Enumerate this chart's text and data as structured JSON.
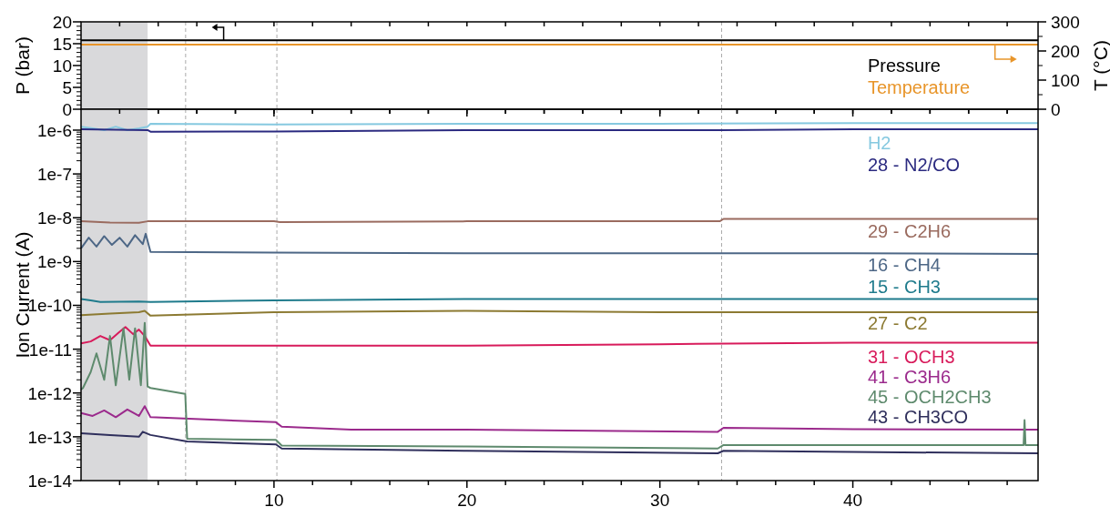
{
  "chart_data": [
    {
      "type": "line",
      "xlim": [
        0,
        49.6
      ],
      "xticks": [
        {
          "value": 2,
          "label": null
        },
        {
          "value": 4,
          "label": null
        },
        {
          "value": 6,
          "label": null
        },
        {
          "value": 8,
          "label": null
        },
        {
          "value": 10,
          "label": null
        },
        {
          "value": 12,
          "label": null
        },
        {
          "value": 14,
          "label": null
        },
        {
          "value": 16,
          "label": null
        },
        {
          "value": 18,
          "label": null
        },
        {
          "value": 20,
          "label": null
        },
        {
          "value": 22,
          "label": null
        },
        {
          "value": 24,
          "label": null
        },
        {
          "value": 26,
          "label": null
        },
        {
          "value": 28,
          "label": null
        },
        {
          "value": 30,
          "label": null
        },
        {
          "value": 32,
          "label": null
        },
        {
          "value": 34,
          "label": null
        },
        {
          "value": 36,
          "label": null
        },
        {
          "value": 38,
          "label": null
        },
        {
          "value": 40,
          "label": null
        },
        {
          "value": 42,
          "label": null
        },
        {
          "value": 44,
          "label": null
        },
        {
          "value": 46,
          "label": null
        },
        {
          "value": 48,
          "label": null
        }
      ],
      "ylim": [
        0,
        20
      ],
      "yticks": [
        0,
        5,
        10,
        15,
        20
      ],
      "ylabel": "P (bar)",
      "y2lim": [
        0,
        300
      ],
      "y2ticks": [
        0,
        100,
        200,
        300
      ],
      "y2label": "T (°C)",
      "tick_labels": "y",
      "legend": "right",
      "bands": [
        {
          "axis": "x",
          "from": 0,
          "to": 3.45,
          "color": "#d9d9db"
        }
      ],
      "ref_lines": [
        {
          "axis": "x",
          "value": 5.42,
          "color": "#aaaaaa",
          "line_style": "dashed"
        },
        {
          "axis": "x",
          "value": 10.15,
          "color": "#aaaaaa",
          "line_style": "dashed"
        },
        {
          "axis": "x",
          "value": 33.2,
          "color": "#aaaaaa",
          "line_style": "dashed"
        }
      ],
      "series": [
        {
          "name": "Pressure",
          "color": "#000000",
          "x": [
            0,
            49.6
          ],
          "values": [
            15.8,
            15.8
          ]
        },
        {
          "name": "Temperature",
          "color": "#e8952a",
          "axis": "y2",
          "x": [
            0,
            49.6
          ],
          "values": [
            222,
            222
          ]
        }
      ]
    },
    {
      "type": "line",
      "log": "y",
      "xlim": [
        0,
        49.6
      ],
      "xticks": [
        {
          "value": 2,
          "label": null
        },
        {
          "value": 4,
          "label": null
        },
        {
          "value": 6,
          "label": null
        },
        {
          "value": 8,
          "label": null
        },
        10,
        {
          "value": 12,
          "label": null
        },
        {
          "value": 14,
          "label": null
        },
        {
          "value": 16,
          "label": null
        },
        {
          "value": 18,
          "label": null
        },
        20,
        {
          "value": 22,
          "label": null
        },
        {
          "value": 24,
          "label": null
        },
        {
          "value": 26,
          "label": null
        },
        {
          "value": 28,
          "label": null
        },
        30,
        {
          "value": 32,
          "label": null
        },
        {
          "value": 34,
          "label": null
        },
        {
          "value": 36,
          "label": null
        },
        {
          "value": 38,
          "label": null
        },
        40,
        {
          "value": 42,
          "label": null
        },
        {
          "value": 44,
          "label": null
        },
        {
          "value": 46,
          "label": null
        },
        {
          "value": 48,
          "label": null
        }
      ],
      "ylim": [
        1e-14,
        3e-06
      ],
      "yticks": [
        {
          "value": 1e-14,
          "label": "1e-14"
        },
        {
          "value": 1e-13,
          "label": "1e-13"
        },
        {
          "value": 1e-12,
          "label": "1e-12"
        },
        {
          "value": 1e-11,
          "label": "1e-11"
        },
        {
          "value": 1e-10,
          "label": "1e-10"
        },
        {
          "value": 1e-09,
          "label": "1e-9"
        },
        {
          "value": 1e-08,
          "label": "1e-8"
        },
        {
          "value": 1e-07,
          "label": "1e-7"
        },
        {
          "value": 1e-06,
          "label": "1e-6"
        }
      ],
      "ylabel": "Ion Current (A)",
      "legend": "right",
      "bands": [
        {
          "axis": "x",
          "from": 0,
          "to": 3.45,
          "color": "#d9d9db"
        }
      ],
      "ref_lines": [
        {
          "axis": "x",
          "value": 5.42,
          "color": "#aaaaaa",
          "line_style": "dashed"
        },
        {
          "axis": "x",
          "value": 10.15,
          "color": "#aaaaaa",
          "line_style": "dashed"
        },
        {
          "axis": "x",
          "value": 33.2,
          "color": "#aaaaaa",
          "line_style": "dashed"
        }
      ],
      "series": [
        {
          "name": "H2",
          "color": "#86c9e0",
          "x": [
            0,
            0.6,
            1.2,
            1.8,
            2.4,
            3.0,
            3.45,
            3.6,
            10,
            20,
            30,
            40,
            49.6
          ],
          "values": [
            1.2e-06,
            1.1e-06,
            1e-06,
            1.2e-06,
            1e-06,
            1.1e-06,
            1.2e-06,
            1.4e-06,
            1.35e-06,
            1.4e-06,
            1.4e-06,
            1.45e-06,
            1.45e-06
          ]
        },
        {
          "name": "28 - N2/CO",
          "color": "#2b2a80",
          "x": [
            0,
            3.45,
            3.6,
            10,
            20,
            30,
            33.2,
            40,
            49.6
          ],
          "values": [
            1.05e-06,
            1e-06,
            9.2e-07,
            9.3e-07,
            1e-06,
            1e-06,
            1e-06,
            1.05e-06,
            1.05e-06
          ]
        },
        {
          "name": "29 - C2H6",
          "color": "#9a6b5f",
          "x": [
            0,
            1.5,
            3.0,
            3.45,
            10,
            10.3,
            20,
            33.1,
            33.3,
            40,
            49.6
          ],
          "values": [
            8.3e-09,
            7.8e-09,
            7.7e-09,
            8.3e-09,
            8.3e-09,
            8e-09,
            8.3e-09,
            8.3e-09,
            9.4e-09,
            9.4e-09,
            9.4e-09
          ]
        },
        {
          "name": "16 - CH4",
          "color": "#4d6786",
          "x": [
            0,
            0.4,
            0.8,
            1.2,
            1.6,
            2.0,
            2.4,
            2.8,
            3.2,
            3.35,
            3.6,
            10,
            20,
            30,
            40,
            49.6
          ],
          "values": [
            2e-09,
            3.5e-09,
            2.2e-09,
            3.8e-09,
            2.4e-09,
            3.5e-09,
            2.2e-09,
            4e-09,
            2.5e-09,
            4.3e-09,
            1.66e-09,
            1.6e-09,
            1.55e-09,
            1.55e-09,
            1.55e-09,
            1.5e-09
          ]
        },
        {
          "name": "15 - CH3",
          "color": "#1f7b8c",
          "x": [
            0,
            0.5,
            1.0,
            3.0,
            3.6,
            10,
            20,
            30,
            40,
            49.6
          ],
          "values": [
            1.4e-10,
            1.3e-10,
            1.2e-10,
            1.23e-10,
            1.2e-10,
            1.3e-10,
            1.4e-10,
            1.4e-10,
            1.4e-10,
            1.4e-10
          ]
        },
        {
          "name": "27 - C2",
          "color": "#8c7a32",
          "x": [
            0,
            1.5,
            3.0,
            3.3,
            3.6,
            10,
            20,
            30,
            40,
            49.6
          ],
          "values": [
            6e-11,
            6.5e-11,
            7e-11,
            7.5e-11,
            5.8e-11,
            7e-11,
            7.5e-11,
            7e-11,
            7e-11,
            7e-11
          ]
        },
        {
          "name": "31 - OCH3",
          "color": "#d81b5b",
          "x": [
            0,
            0.5,
            1.0,
            1.5,
            2.0,
            2.3,
            2.7,
            3.0,
            3.3,
            3.6,
            10,
            20,
            30,
            40,
            49.6
          ],
          "values": [
            1.36e-11,
            1.5e-11,
            2e-11,
            1.6e-11,
            2.5e-11,
            3.2e-11,
            2.2e-11,
            2.8e-11,
            2e-11,
            1.2e-11,
            1.2e-11,
            1.2e-11,
            1.3e-11,
            1.4e-11,
            1.4e-11
          ]
        },
        {
          "name": "41 - C3H6",
          "color": "#9b2a8c",
          "x": [
            0,
            0.6,
            1.2,
            1.8,
            2.4,
            3.0,
            3.3,
            3.6,
            10.1,
            10.4,
            14,
            20,
            33.0,
            33.3,
            40,
            49.6
          ],
          "values": [
            3.5e-13,
            3e-13,
            4e-13,
            2.8e-13,
            4.2e-13,
            3e-13,
            5e-13,
            2.8e-13,
            2.15e-13,
            1.7e-13,
            1.45e-13,
            1.45e-13,
            1.3e-13,
            1.6e-13,
            1.5e-13,
            1.45e-13
          ]
        },
        {
          "name": "45 - OCH2CH3",
          "color": "#5e8a6d",
          "x": [
            0,
            0.1,
            0.5,
            0.8,
            1.2,
            1.5,
            1.8,
            2.2,
            2.5,
            2.8,
            3.1,
            3.3,
            3.45,
            3.6,
            5.4,
            5.5,
            10.1,
            10.4,
            20,
            33.0,
            33.3,
            40,
            48.85,
            48.9,
            48.95,
            49.6
          ],
          "values": [
            1.2e-12,
            1.3e-12,
            3e-12,
            8e-12,
            2e-12,
            2e-11,
            1.5e-12,
            3e-11,
            2e-12,
            3e-11,
            1.5e-12,
            4e-11,
            1.4e-12,
            1.3e-12,
            9.5e-13,
            9e-14,
            8.5e-14,
            6.3e-14,
            6e-14,
            5.4e-14,
            6.5e-14,
            6.5e-14,
            6.5e-14,
            2.4e-13,
            6.5e-14,
            6.5e-14
          ]
        },
        {
          "name": "43 - CH3CO",
          "color": "#2f2f5c",
          "x": [
            0,
            1.5,
            3.0,
            3.2,
            3.6,
            5.5,
            10.1,
            10.4,
            20,
            33.0,
            33.3,
            40,
            49.6
          ],
          "values": [
            1.2e-13,
            1.1e-13,
            1e-13,
            1.3e-13,
            1.1e-13,
            7.8e-14,
            6.7e-14,
            5.4e-14,
            4.8e-14,
            4.2e-14,
            4.8e-14,
            4.5e-14,
            4.2e-14
          ]
        }
      ]
    }
  ]
}
